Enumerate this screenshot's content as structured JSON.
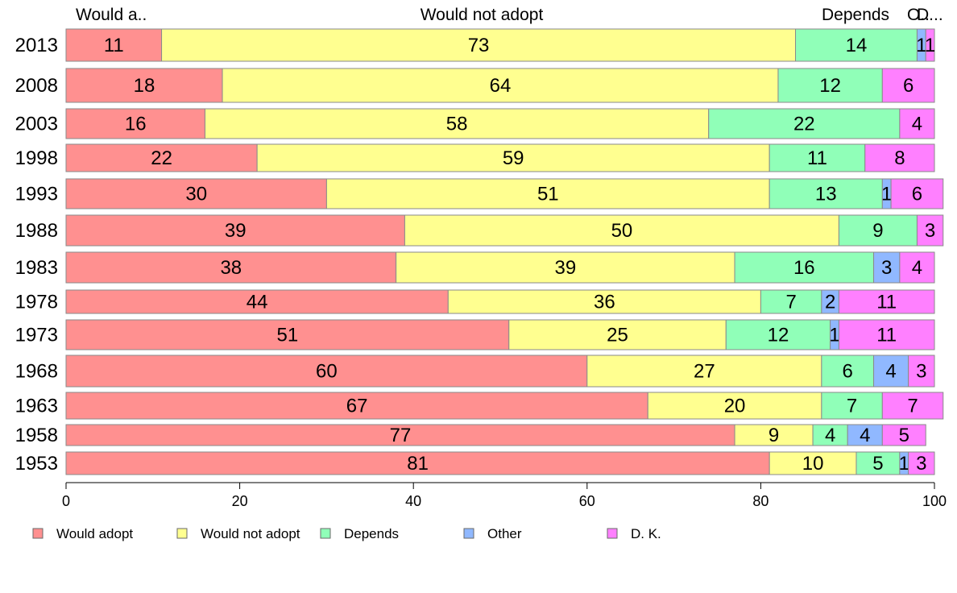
{
  "chart_data": {
    "type": "bar",
    "orientation": "horizontal",
    "stacked": true,
    "categories": [
      "2013",
      "2008",
      "2003",
      "1998",
      "1993",
      "1988",
      "1983",
      "1978",
      "1973",
      "1968",
      "1963",
      "1958",
      "1953"
    ],
    "series": [
      {
        "name": "Would adopt",
        "color": "#ff9090",
        "values": [
          11,
          18,
          16,
          22,
          30,
          39,
          38,
          44,
          51,
          60,
          67,
          77,
          81
        ]
      },
      {
        "name": "Would not adopt",
        "color": "#ffff90",
        "values": [
          73,
          64,
          58,
          59,
          51,
          50,
          39,
          36,
          25,
          27,
          20,
          9,
          10
        ]
      },
      {
        "name": "Depends",
        "color": "#90ffb8",
        "values": [
          14,
          12,
          22,
          11,
          13,
          9,
          16,
          7,
          12,
          6,
          7,
          4,
          5
        ]
      },
      {
        "name": "Other",
        "color": "#90b8ff",
        "values": [
          1,
          0,
          0,
          0,
          1,
          0,
          3,
          2,
          1,
          4,
          0,
          4,
          1
        ]
      },
      {
        "name": "D. K.",
        "color": "#ff80ff",
        "values": [
          1,
          6,
          4,
          8,
          6,
          3,
          4,
          11,
          11,
          3,
          7,
          5,
          3
        ]
      }
    ],
    "top_labels": [
      "Would a..",
      "Would not adopt",
      "Depends",
      "O..",
      "D..."
    ],
    "xlim": [
      0,
      100
    ],
    "xticks": [
      "0",
      "20",
      "40",
      "60",
      "80",
      "100"
    ],
    "grid": false,
    "legend_position": "bottom"
  }
}
